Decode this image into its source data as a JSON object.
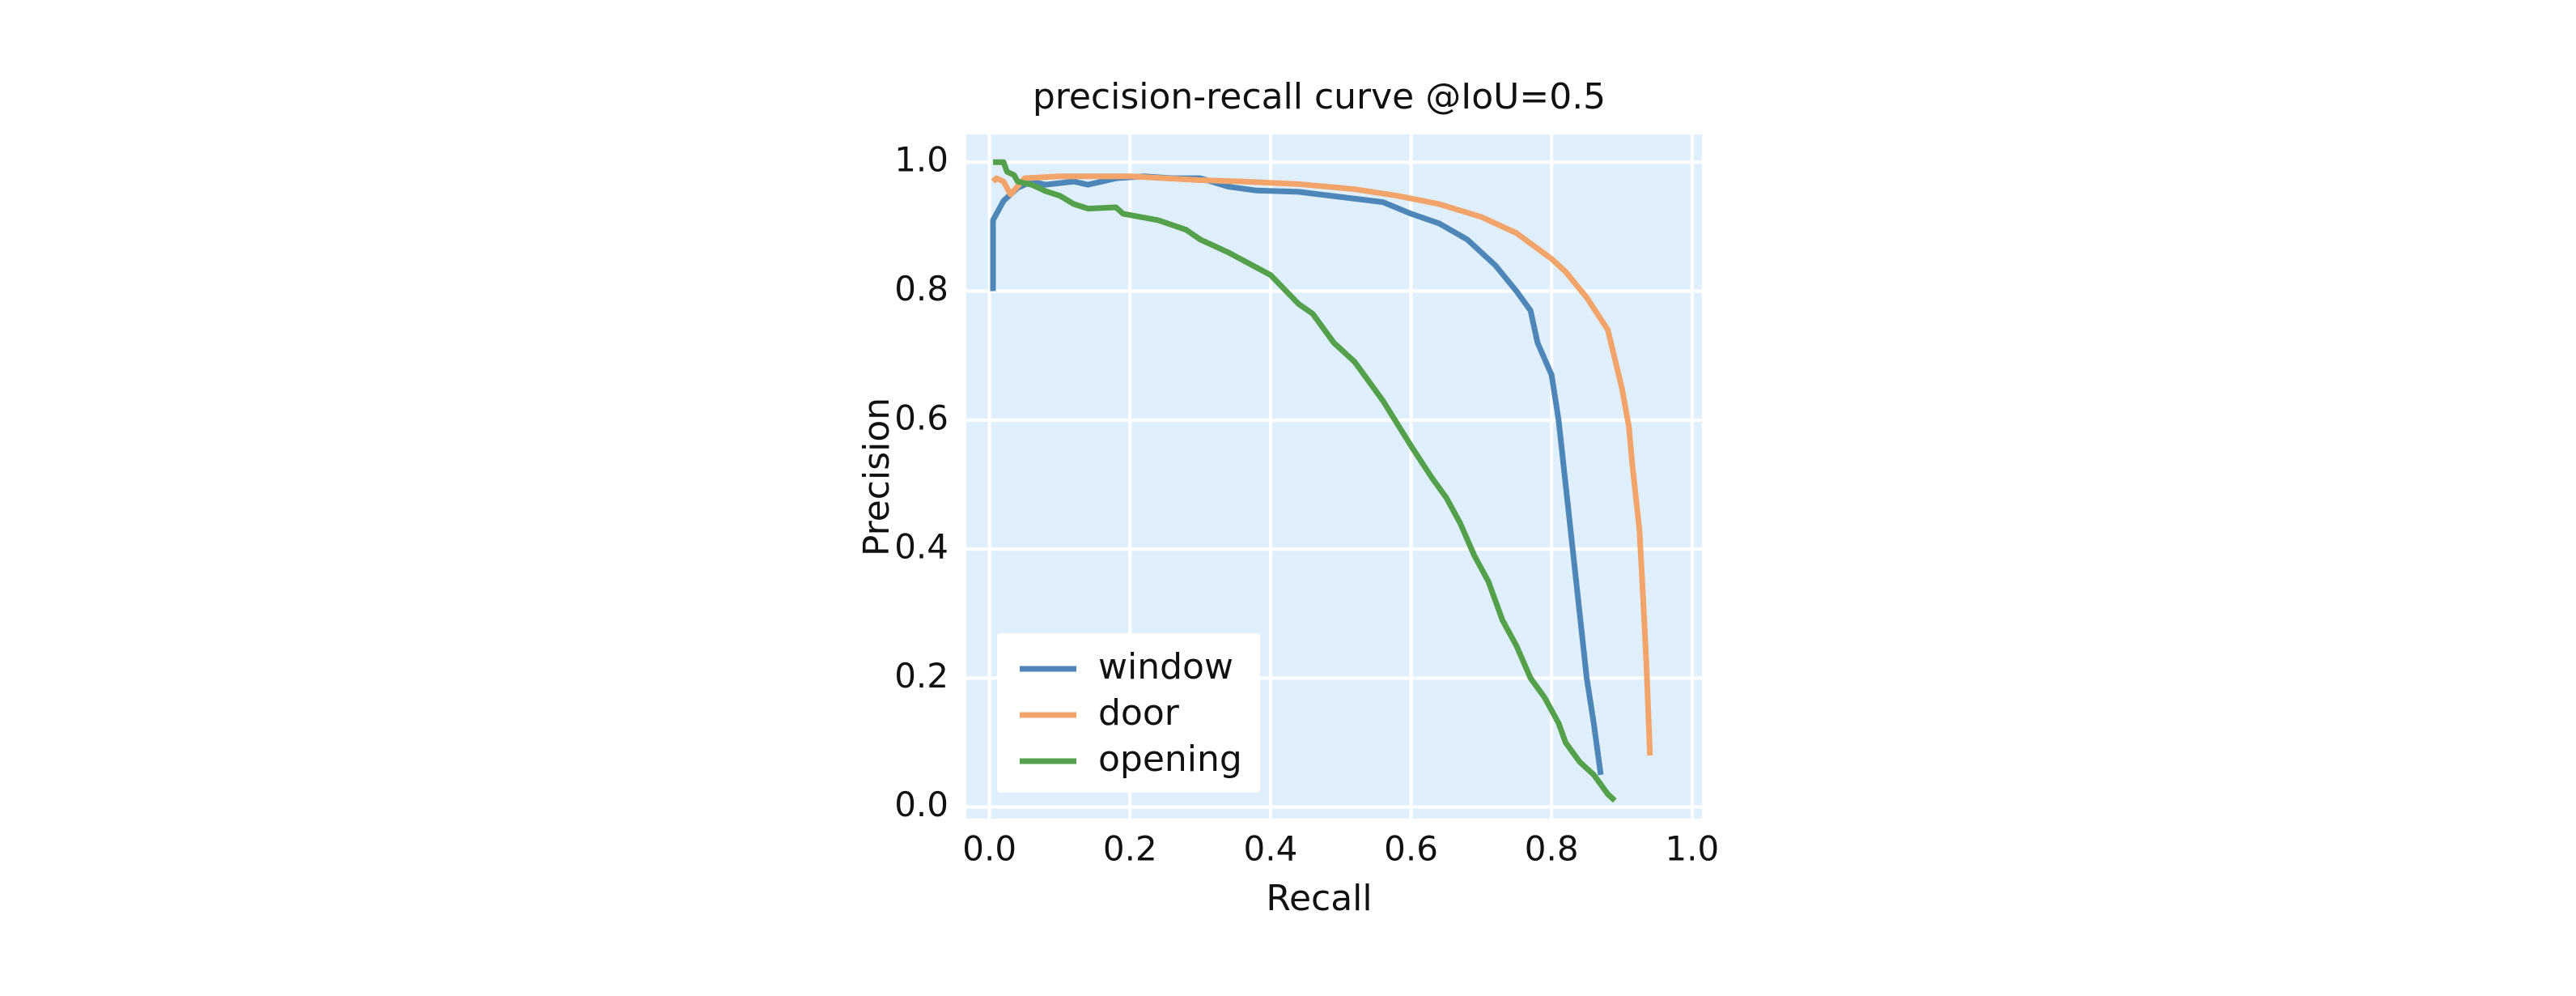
{
  "chart_data": {
    "type": "line",
    "title": "precision-recall curve @IoU=0.5",
    "x_label": "Recall",
    "y_label": "Precision",
    "xlim": [
      -0.033,
      1.014
    ],
    "ylim": [
      -0.018,
      1.043
    ],
    "xticks": [
      {
        "value": 0,
        "label": "0.0"
      },
      0.2,
      0.4,
      0.6,
      0.8,
      {
        "value": 1,
        "label": "1.0"
      }
    ],
    "yticks": [
      {
        "value": 0,
        "label": "0.0"
      },
      0.2,
      0.4,
      0.6,
      0.8,
      {
        "value": 1,
        "label": "1.0"
      }
    ],
    "grid": true,
    "legend": "lower left",
    "series": [
      {
        "name": "window",
        "color": "#4f86b8",
        "x": [
          0.005,
          0.005,
          0.02,
          0.04,
          0.06,
          0.08,
          0.12,
          0.14,
          0.18,
          0.22,
          0.26,
          0.3,
          0.34,
          0.38,
          0.44,
          0.5,
          0.56,
          0.6,
          0.64,
          0.68,
          0.72,
          0.75,
          0.77,
          0.78,
          0.8,
          0.81,
          0.82,
          0.83,
          0.84,
          0.85,
          0.86,
          0.87
        ],
        "values": [
          0.8,
          0.91,
          0.94,
          0.96,
          0.97,
          0.965,
          0.97,
          0.965,
          0.975,
          0.978,
          0.975,
          0.975,
          0.962,
          0.956,
          0.954,
          0.946,
          0.938,
          0.92,
          0.905,
          0.88,
          0.84,
          0.8,
          0.77,
          0.72,
          0.67,
          0.6,
          0.5,
          0.4,
          0.3,
          0.2,
          0.13,
          0.05
        ]
      },
      {
        "name": "door",
        "color": "#f2a46a",
        "x": [
          0.005,
          0.01,
          0.02,
          0.03,
          0.05,
          0.1,
          0.2,
          0.25,
          0.3,
          0.36,
          0.44,
          0.52,
          0.58,
          0.64,
          0.7,
          0.75,
          0.8,
          0.82,
          0.85,
          0.88,
          0.9,
          0.91,
          0.915,
          0.925,
          0.93,
          0.935,
          0.94
        ],
        "values": [
          0.97,
          0.975,
          0.97,
          0.95,
          0.975,
          0.978,
          0.978,
          0.975,
          0.972,
          0.97,
          0.966,
          0.958,
          0.948,
          0.935,
          0.915,
          0.89,
          0.85,
          0.83,
          0.79,
          0.74,
          0.65,
          0.59,
          0.53,
          0.43,
          0.33,
          0.22,
          0.08
        ]
      },
      {
        "name": "opening",
        "color": "#55a14b",
        "x": [
          0.005,
          0.02,
          0.025,
          0.035,
          0.04,
          0.06,
          0.08,
          0.1,
          0.12,
          0.14,
          0.18,
          0.19,
          0.24,
          0.28,
          0.3,
          0.34,
          0.4,
          0.44,
          0.46,
          0.49,
          0.52,
          0.56,
          0.6,
          0.63,
          0.65,
          0.67,
          0.69,
          0.71,
          0.73,
          0.75,
          0.77,
          0.79,
          0.81,
          0.82,
          0.84,
          0.86,
          0.88,
          0.89
        ],
        "values": [
          1.0,
          1.0,
          0.985,
          0.98,
          0.97,
          0.965,
          0.955,
          0.948,
          0.935,
          0.928,
          0.93,
          0.92,
          0.91,
          0.895,
          0.88,
          0.86,
          0.825,
          0.78,
          0.765,
          0.72,
          0.69,
          0.63,
          0.56,
          0.51,
          0.48,
          0.44,
          0.39,
          0.35,
          0.29,
          0.25,
          0.2,
          0.17,
          0.13,
          0.1,
          0.07,
          0.05,
          0.02,
          0.01
        ]
      }
    ]
  }
}
